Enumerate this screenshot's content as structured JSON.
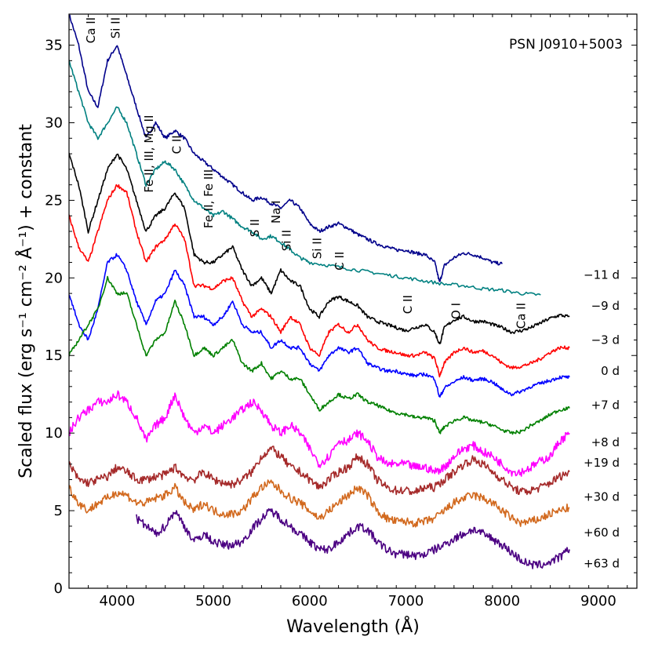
{
  "chart_data": {
    "type": "line",
    "title": "PSN J0910+5003",
    "xlabel": "Wavelength (Å)",
    "ylabel": "Scaled flux (erg s⁻¹ cm⁻² Å⁻¹) + constant",
    "xlim": [
      3500,
      9400
    ],
    "ylim": [
      0,
      37
    ],
    "xticks": [
      4000,
      5000,
      6000,
      7000,
      8000,
      9000
    ],
    "yticks": [
      0,
      5,
      10,
      15,
      20,
      25,
      30,
      35
    ],
    "series": [
      {
        "name": "−11 d",
        "color": "#00008b",
        "x": [
          3500,
          3600,
          3700,
          3800,
          3900,
          4000,
          4100,
          4200,
          4300,
          4400,
          4500,
          4600,
          4700,
          4800,
          4900,
          5000,
          5100,
          5200,
          5300,
          5400,
          5500,
          5600,
          5700,
          5800,
          5900,
          6000,
          6100,
          6200,
          6300,
          6400,
          6500,
          6600,
          6700,
          6800,
          6900,
          7000,
          7100,
          7200,
          7300,
          7350,
          7400,
          7500,
          7600,
          7700,
          7800,
          7900,
          8000
        ],
        "y": [
          37,
          35,
          32,
          31,
          34,
          35,
          33,
          31,
          29,
          30,
          29,
          29.5,
          29,
          28,
          27.5,
          27,
          26.5,
          26,
          25.5,
          25,
          25.2,
          24.8,
          24.5,
          25,
          24.5,
          23.5,
          23,
          23.3,
          23.5,
          23.2,
          22.8,
          22.5,
          22.2,
          22,
          21.8,
          21.8,
          21.6,
          21.5,
          21,
          19.7,
          20.8,
          21.3,
          21.6,
          21.5,
          21.3,
          21,
          20.9
        ]
      },
      {
        "name": "−9 d",
        "color": "#008080",
        "x": [
          3500,
          3600,
          3700,
          3800,
          3900,
          4000,
          4100,
          4200,
          4300,
          4400,
          4500,
          4600,
          4700,
          4800,
          4900,
          5000,
          5100,
          5200,
          5300,
          5400,
          5500,
          5600,
          5700,
          5800,
          5900,
          6000,
          6200,
          6400,
          6600,
          6800,
          7000,
          7200,
          7400,
          7600,
          7800,
          8000,
          8200,
          8400
        ],
        "y": [
          34,
          32,
          30,
          29,
          30,
          31,
          30,
          28,
          26,
          27,
          27.5,
          27,
          26,
          25,
          24.5,
          24,
          24.3,
          23.8,
          23.3,
          23,
          22.5,
          22.7,
          22.3,
          21.8,
          21.3,
          21,
          20.8,
          20.6,
          20.4,
          20.2,
          20,
          19.8,
          19.6,
          19.5,
          19.3,
          19.2,
          19,
          18.9
        ]
      },
      {
        "name": "−3 d",
        "color": "#000000",
        "x": [
          3500,
          3600,
          3700,
          3800,
          3900,
          4000,
          4100,
          4200,
          4300,
          4400,
          4500,
          4600,
          4700,
          4800,
          4900,
          5000,
          5100,
          5200,
          5300,
          5400,
          5500,
          5600,
          5700,
          5800,
          5900,
          6000,
          6100,
          6200,
          6300,
          6400,
          6500,
          6600,
          6700,
          6800,
          6900,
          7000,
          7100,
          7200,
          7300,
          7350,
          7400,
          7500,
          7600,
          7700,
          7800,
          7900,
          8000,
          8100,
          8200,
          8300,
          8400,
          8500,
          8600,
          8700
        ],
        "y": [
          28,
          26,
          23,
          25,
          27,
          28,
          27,
          25,
          23,
          24,
          24.5,
          25.5,
          24.5,
          21.5,
          21,
          21,
          21.5,
          22,
          20.5,
          19.5,
          20,
          19,
          20.5,
          19.8,
          19.5,
          18,
          17.5,
          18.5,
          18.8,
          18.5,
          18.2,
          17.5,
          17.2,
          17,
          16.8,
          16.6,
          16.8,
          17,
          16.5,
          15.7,
          16.8,
          17.3,
          17.5,
          17.2,
          17.2,
          17,
          16.8,
          16.5,
          16.6,
          16.8,
          17.1,
          17.4,
          17.6,
          17.5
        ]
      },
      {
        "name": "0 d",
        "color": "#ff0000",
        "x": [
          3500,
          3600,
          3700,
          3800,
          3900,
          4000,
          4100,
          4200,
          4300,
          4400,
          4500,
          4600,
          4700,
          4800,
          4900,
          5000,
          5100,
          5200,
          5300,
          5400,
          5500,
          5600,
          5700,
          5800,
          5900,
          6000,
          6100,
          6200,
          6300,
          6400,
          6500,
          6600,
          6700,
          6800,
          6900,
          7000,
          7100,
          7200,
          7300,
          7350,
          7400,
          7500,
          7600,
          7700,
          7800,
          7900,
          8000,
          8100,
          8200,
          8300,
          8400,
          8500,
          8600,
          8700
        ],
        "y": [
          24,
          22,
          21,
          23,
          25,
          26,
          25.5,
          23,
          21,
          22,
          22.5,
          23.5,
          22.5,
          19.5,
          19.5,
          19.3,
          19.8,
          20,
          18.5,
          17.5,
          18,
          17.5,
          16.5,
          17.5,
          17,
          15.5,
          15,
          16.5,
          17,
          16.5,
          17,
          16,
          15.5,
          15.3,
          15.2,
          15,
          15,
          15.2,
          14.8,
          13.7,
          14.5,
          15.2,
          15.5,
          15.2,
          15.3,
          15,
          14.5,
          14.2,
          14.3,
          14.5,
          14.8,
          15.2,
          15.5,
          15.5
        ]
      },
      {
        "name": "+7 d",
        "color": "#0000ff",
        "x": [
          3500,
          3600,
          3700,
          3800,
          3900,
          4000,
          4100,
          4200,
          4300,
          4400,
          4500,
          4600,
          4700,
          4800,
          4900,
          5000,
          5100,
          5200,
          5300,
          5400,
          5500,
          5600,
          5700,
          5800,
          5900,
          6000,
          6100,
          6200,
          6300,
          6400,
          6500,
          6600,
          6700,
          6800,
          6900,
          7000,
          7100,
          7200,
          7300,
          7350,
          7400,
          7500,
          7600,
          7700,
          7800,
          7900,
          8000,
          8100,
          8200,
          8300,
          8400,
          8500,
          8600,
          8700
        ],
        "y": [
          19,
          17,
          16,
          18,
          21,
          21.5,
          20.5,
          18.5,
          17,
          18.5,
          19,
          20.5,
          19.5,
          17.5,
          17.5,
          17,
          17.5,
          18.5,
          17,
          16.5,
          16.5,
          15.5,
          16,
          15.5,
          15.5,
          14.5,
          14,
          15,
          15.5,
          15.2,
          15.5,
          14.5,
          14.2,
          14,
          14,
          13.8,
          13.7,
          13.8,
          13.5,
          12.3,
          12.9,
          13.3,
          13.6,
          13.4,
          13.5,
          13.3,
          12.8,
          12.5,
          12.7,
          13,
          13.2,
          13.4,
          13.6,
          13.6
        ]
      },
      {
        "name": "+8 d",
        "color": "#008000",
        "x": [
          3500,
          3600,
          3700,
          3800,
          3900,
          4000,
          4100,
          4200,
          4300,
          4400,
          4500,
          4600,
          4700,
          4800,
          4900,
          5000,
          5100,
          5200,
          5300,
          5400,
          5500,
          5600,
          5700,
          5800,
          5900,
          6000,
          6100,
          6200,
          6300,
          6400,
          6500,
          6600,
          6700,
          6800,
          6900,
          7000,
          7100,
          7200,
          7300,
          7350,
          7400,
          7500,
          7600,
          7700,
          7800,
          7900,
          8000,
          8100,
          8200,
          8300,
          8400,
          8500,
          8600,
          8700
        ],
        "y": [
          15,
          16,
          17,
          18,
          20,
          19,
          19,
          17,
          15,
          16,
          16.5,
          18.5,
          17,
          15,
          15.5,
          15,
          15.5,
          16,
          14.5,
          14,
          14.5,
          13.5,
          14,
          13.5,
          13.5,
          12.5,
          11.5,
          12,
          12.5,
          12.2,
          12.5,
          12,
          11.8,
          11.5,
          11.3,
          11.2,
          11,
          11,
          10.8,
          10,
          10.4,
          10.8,
          11,
          10.8,
          10.7,
          10.5,
          10.2,
          10,
          10.1,
          10.5,
          10.8,
          11.2,
          11.5,
          11.6
        ]
      },
      {
        "name": "+19 d",
        "color": "#ff00ff",
        "x": [
          3500,
          3600,
          3700,
          3800,
          3900,
          4000,
          4100,
          4200,
          4300,
          4400,
          4500,
          4600,
          4700,
          4800,
          4900,
          5000,
          5100,
          5200,
          5300,
          5400,
          5500,
          5600,
          5700,
          5800,
          5900,
          6000,
          6100,
          6200,
          6300,
          6400,
          6500,
          6600,
          6700,
          6800,
          6900,
          7000,
          7100,
          7200,
          7300,
          7400,
          7500,
          7600,
          7700,
          7800,
          7900,
          8000,
          8100,
          8200,
          8300,
          8400,
          8500,
          8600,
          8700
        ],
        "y": [
          10,
          11,
          11.5,
          12,
          12,
          12.5,
          12,
          11,
          9.5,
          10.5,
          11,
          12.5,
          11,
          10,
          10.5,
          10,
          10.5,
          11,
          11.5,
          12,
          11.5,
          10.5,
          10,
          10.5,
          10,
          9,
          8,
          8.5,
          9.5,
          9.5,
          10,
          9.5,
          8.5,
          8,
          8,
          8,
          7.8,
          7.8,
          7.5,
          7.8,
          8.5,
          9,
          9.2,
          8.8,
          8.5,
          8,
          7.5,
          7.5,
          7.8,
          8.2,
          8.5,
          9.5,
          10
        ]
      },
      {
        "name": "+30 d",
        "color": "#a52a2a",
        "x": [
          3500,
          3600,
          3700,
          3800,
          3900,
          4000,
          4100,
          4200,
          4300,
          4400,
          4500,
          4600,
          4700,
          4800,
          4900,
          5000,
          5100,
          5200,
          5300,
          5400,
          5500,
          5600,
          5700,
          5800,
          5900,
          6000,
          6100,
          6200,
          6300,
          6400,
          6500,
          6600,
          6700,
          6800,
          6900,
          7000,
          7100,
          7200,
          7300,
          7400,
          7500,
          7600,
          7700,
          7800,
          7900,
          8000,
          8100,
          8200,
          8300,
          8400,
          8500,
          8600,
          8700
        ],
        "y": [
          8,
          7,
          6.8,
          7,
          7.2,
          7.8,
          7.5,
          7,
          7,
          7.2,
          7.3,
          7.8,
          7.2,
          7,
          7.5,
          7,
          6.8,
          6.7,
          7,
          7.5,
          8.5,
          9,
          8.5,
          7.8,
          7.5,
          7,
          6.5,
          7,
          7.5,
          7.8,
          8.5,
          8,
          7,
          6.5,
          6.3,
          6.3,
          6.2,
          6.5,
          6.5,
          7,
          7.5,
          8,
          8.3,
          8,
          7.5,
          7,
          6.5,
          6.2,
          6.3,
          6.5,
          6.8,
          7.2,
          7.5
        ]
      },
      {
        "name": "+60 d",
        "color": "#d2691e",
        "x": [
          3500,
          3600,
          3700,
          3800,
          3900,
          4000,
          4100,
          4200,
          4300,
          4400,
          4500,
          4600,
          4700,
          4800,
          4900,
          5000,
          5100,
          5200,
          5300,
          5400,
          5500,
          5600,
          5700,
          5800,
          5900,
          6000,
          6100,
          6200,
          6300,
          6400,
          6500,
          6600,
          6700,
          6800,
          6900,
          7000,
          7100,
          7200,
          7300,
          7400,
          7500,
          7600,
          7700,
          7800,
          7900,
          8000,
          8100,
          8200,
          8300,
          8400,
          8500,
          8600,
          8700
        ],
        "y": [
          6.5,
          5.5,
          5,
          5.5,
          5.8,
          6.2,
          6,
          5.5,
          5.5,
          5.8,
          6,
          6.5,
          5.5,
          5,
          5.5,
          5,
          4.8,
          4.8,
          5,
          5.8,
          6.5,
          6.8,
          6.3,
          5.8,
          5.5,
          5,
          4.5,
          5,
          5.5,
          6,
          6.5,
          6,
          5,
          4.5,
          4.3,
          4.3,
          4.2,
          4.3,
          4.5,
          5,
          5.5,
          5.8,
          6,
          5.8,
          5.5,
          5,
          4.5,
          4.2,
          4.3,
          4.5,
          4.8,
          5,
          5.2
        ]
      },
      {
        "name": "+63 d",
        "color": "#4b0082",
        "x": [
          4200,
          4300,
          4400,
          4500,
          4600,
          4700,
          4800,
          4900,
          5000,
          5100,
          5200,
          5300,
          5400,
          5500,
          5600,
          5700,
          5800,
          5900,
          6000,
          6100,
          6200,
          6300,
          6400,
          6500,
          6600,
          6700,
          6800,
          6900,
          7000,
          7100,
          7200,
          7300,
          7400,
          7500,
          7600,
          7700,
          7800,
          7900,
          8000,
          8100,
          8200,
          8300,
          8400,
          8500,
          8600,
          8700
        ],
        "y": [
          4.5,
          4,
          3.5,
          4,
          5,
          4,
          3,
          3.5,
          3,
          2.8,
          2.8,
          3,
          3.8,
          4.5,
          5,
          4.5,
          4,
          3.5,
          3,
          2.5,
          2.5,
          3,
          3.5,
          4,
          3.8,
          3,
          2.5,
          2.2,
          2.2,
          2.1,
          2.2,
          2.5,
          2.8,
          3.2,
          3.5,
          3.8,
          3.5,
          3.2,
          2.8,
          2.3,
          1.8,
          1.5,
          1.5,
          1.7,
          2,
          2.5
        ]
      }
    ],
    "annotations": [
      {
        "text": "Ca II",
        "x": 3730,
        "y": 36.8
      },
      {
        "text": "Si II",
        "x": 3985,
        "y": 36.8
      },
      {
        "text": "Fe II, III, Mg II",
        "x": 4330,
        "y": 30.5
      },
      {
        "text": "C II",
        "x": 4620,
        "y": 29.2
      },
      {
        "text": "Fe II, Fe III",
        "x": 4950,
        "y": 27
      },
      {
        "text": "S II",
        "x": 5430,
        "y": 23.8
      },
      {
        "text": "Na I",
        "x": 5650,
        "y": 25
      },
      {
        "text": "Si II",
        "x": 5760,
        "y": 23.1
      },
      {
        "text": "Si II",
        "x": 6080,
        "y": 22.6
      },
      {
        "text": "C II",
        "x": 6310,
        "y": 21.7
      },
      {
        "text": "C II",
        "x": 7020,
        "y": 18.9
      },
      {
        "text": "O I",
        "x": 7520,
        "y": 18.4
      },
      {
        "text": "Ca II",
        "x": 8200,
        "y": 18.4
      }
    ],
    "epoch_labels": [
      {
        "text": "−11 d",
        "y": 20.2
      },
      {
        "text": "−9 d",
        "y": 18.2
      },
      {
        "text": "−3 d",
        "y": 16.0
      },
      {
        "text": "0 d",
        "y": 14.0
      },
      {
        "text": "+7 d",
        "y": 11.8
      },
      {
        "text": "+8 d",
        "y": 9.4
      },
      {
        "text": "+19 d",
        "y": 8.1
      },
      {
        "text": "+30 d",
        "y": 5.9
      },
      {
        "text": "+60 d",
        "y": 3.6
      },
      {
        "text": "+63 d",
        "y": 1.6
      }
    ]
  }
}
